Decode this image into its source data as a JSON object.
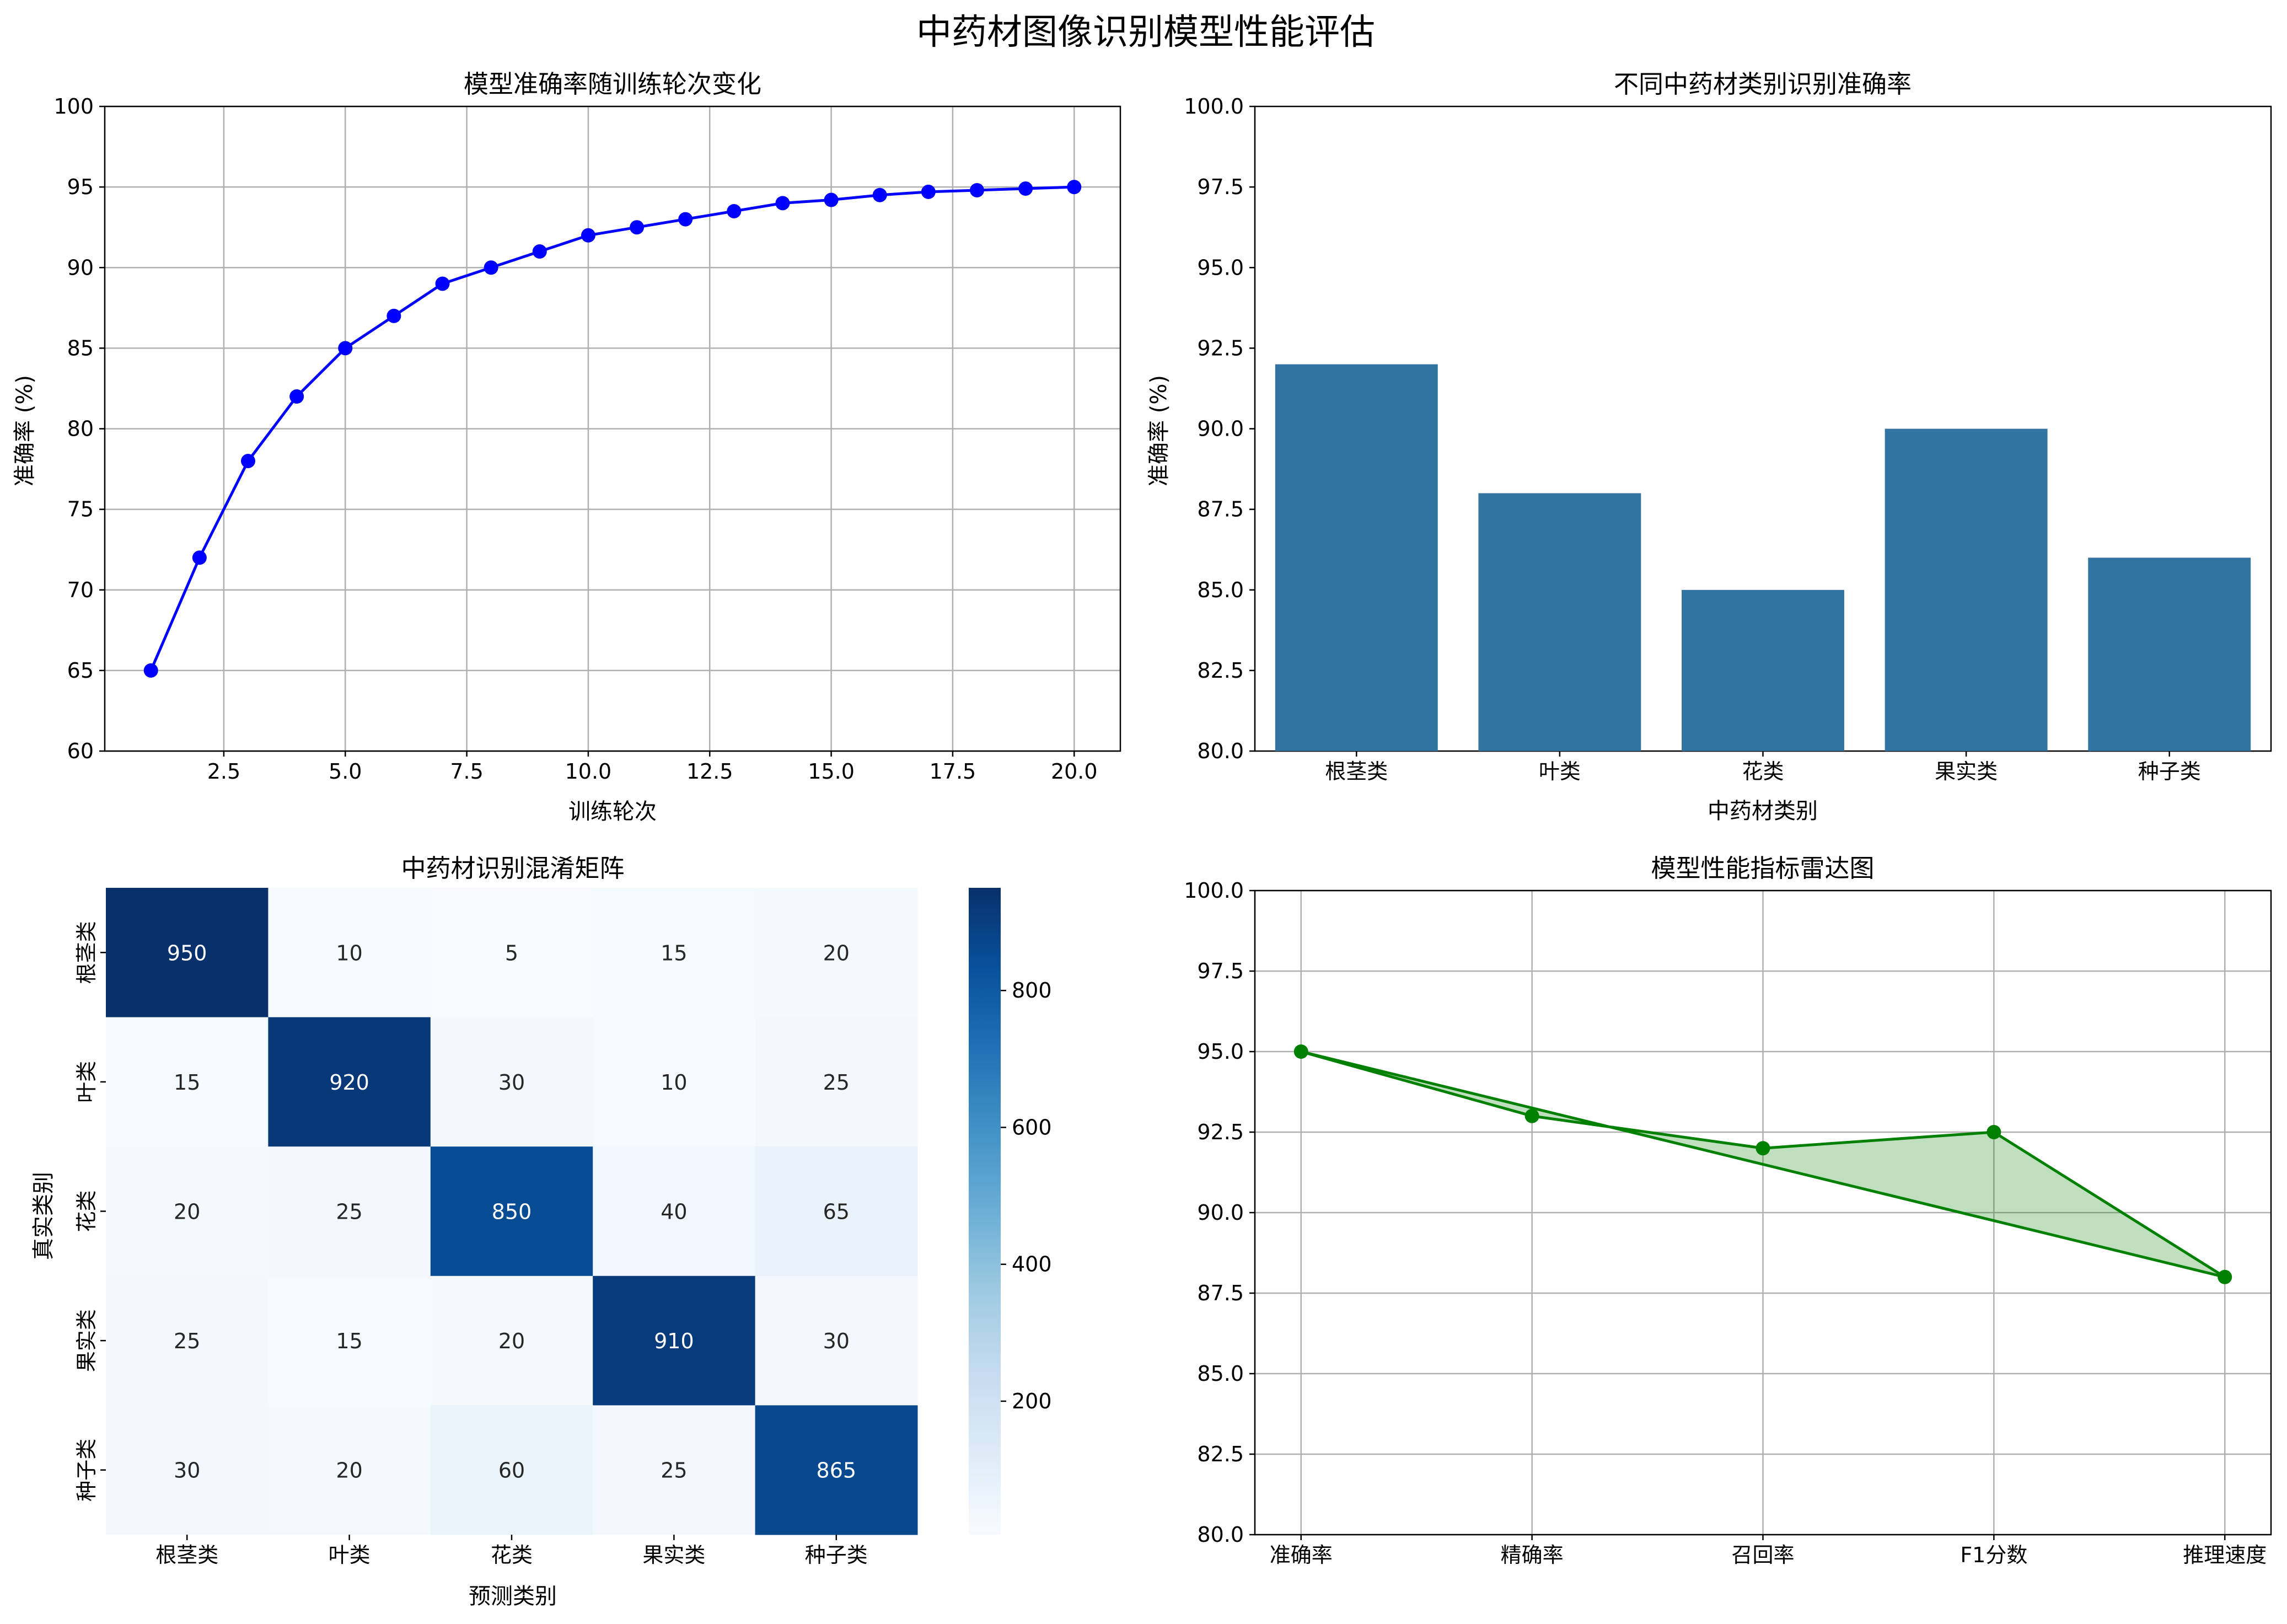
{
  "figure": {
    "title": "中药材图像识别模型性能评估"
  },
  "chart_data": [
    {
      "type": "line",
      "title": "模型准确率随训练轮次变化",
      "xlabel": "训练轮次",
      "ylabel": "准确率 (%)",
      "x": [
        1,
        2,
        3,
        4,
        5,
        6,
        7,
        8,
        9,
        10,
        11,
        12,
        13,
        14,
        15,
        16,
        17,
        18,
        19,
        20
      ],
      "values": [
        65,
        72,
        78,
        82,
        85,
        87,
        89,
        90,
        91,
        92,
        92.5,
        93,
        93.5,
        94,
        94.2,
        94.5,
        94.7,
        94.8,
        94.9,
        95
      ],
      "xlim": [
        0.05,
        20.95
      ],
      "ylim": [
        60,
        100
      ],
      "xticks": [
        2.5,
        5.0,
        7.5,
        10.0,
        12.5,
        15.0,
        17.5,
        20.0
      ],
      "yticks": [
        60,
        65,
        70,
        75,
        80,
        85,
        90,
        95,
        100
      ],
      "grid": true,
      "color": "#0000ff"
    },
    {
      "type": "bar",
      "title": "不同中药材类别识别准确率",
      "xlabel": "中药材类别",
      "ylabel": "准确率 (%)",
      "categories": [
        "根茎类",
        "叶类",
        "花类",
        "果实类",
        "种子类"
      ],
      "values": [
        92,
        88,
        85,
        90,
        86
      ],
      "ylim": [
        80,
        100
      ],
      "yticks": [
        "80.0",
        "82.5",
        "85.0",
        "87.5",
        "90.0",
        "92.5",
        "95.0",
        "97.5",
        "100.0"
      ],
      "grid": false,
      "color": "#3274a1"
    },
    {
      "type": "heatmap",
      "title": "中药材识别混淆矩阵",
      "xlabel": "预测类别",
      "ylabel": "真实类别",
      "rows": [
        "根茎类",
        "叶类",
        "花类",
        "果实类",
        "种子类"
      ],
      "cols": [
        "根茎类",
        "叶类",
        "花类",
        "果实类",
        "种子类"
      ],
      "values": [
        [
          950,
          10,
          5,
          15,
          20
        ],
        [
          15,
          920,
          30,
          10,
          25
        ],
        [
          20,
          25,
          850,
          40,
          65
        ],
        [
          25,
          15,
          20,
          910,
          30
        ],
        [
          30,
          20,
          60,
          25,
          865
        ]
      ],
      "vmin": 5,
      "vmax": 950,
      "colormap": "Blues",
      "colorbar_ticks": [
        200,
        400,
        600,
        800
      ]
    },
    {
      "type": "line",
      "title": "模型性能指标雷达图",
      "categories": [
        "准确率",
        "精确率",
        "召回率",
        "F1分数",
        "推理速度"
      ],
      "values": [
        95,
        93,
        92,
        92.5,
        88
      ],
      "ylim": [
        80,
        100
      ],
      "yticks": [
        "80.0",
        "82.5",
        "85.0",
        "87.5",
        "90.0",
        "92.5",
        "95.0",
        "97.5",
        "100.0"
      ],
      "grid": true,
      "color": "#008000",
      "fill_color": "#008000"
    }
  ]
}
